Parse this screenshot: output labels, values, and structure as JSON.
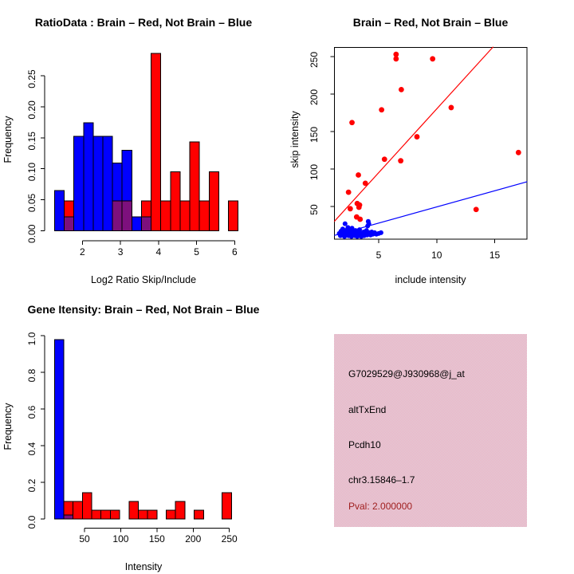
{
  "window": {
    "background": "#ffffff"
  },
  "colors": {
    "red": "#ff0000",
    "blue": "#0000ff",
    "overlap": "#7d107d",
    "axis": "#000000",
    "pval_text": "#a02020",
    "info_bg_pink": "#f2abc2",
    "info_bg_gray": "#dcd4da"
  },
  "legend_meaning": {
    "red": "Brain",
    "blue": "Not Brain"
  },
  "chart_data": [
    {
      "id": "ratio_histogram",
      "type": "bar",
      "title": "RatioData : Brain – Red, Not Brain – Blue",
      "xlabel": "Log2 Ratio Skip/Include",
      "ylabel": "Frequency",
      "xlim": [
        1.2,
        6.2
      ],
      "ylim": [
        0,
        0.29
      ],
      "grid": false,
      "x_ticks": [
        2,
        3,
        4,
        5,
        6
      ],
      "y_ticks": [
        {
          "v": 0.0,
          "label": "0.00"
        },
        {
          "v": 0.05,
          "label": "0.05"
        },
        {
          "v": 0.1,
          "label": "0.10"
        },
        {
          "v": 0.15,
          "label": "0.15"
        },
        {
          "v": 0.2,
          "label": "0.20"
        },
        {
          "v": 0.25,
          "label": "0.25"
        }
      ],
      "bins": [
        {
          "x0": 1.27,
          "x1": 1.524,
          "blue": 0.065,
          "red": 0
        },
        {
          "x0": 1.524,
          "x1": 1.777,
          "blue": 0.022,
          "red": 0.048
        },
        {
          "x0": 1.777,
          "x1": 2.031,
          "blue": 0.152,
          "red": 0
        },
        {
          "x0": 2.031,
          "x1": 2.285,
          "blue": 0.174,
          "red": 0
        },
        {
          "x0": 2.285,
          "x1": 2.538,
          "blue": 0.152,
          "red": 0
        },
        {
          "x0": 2.538,
          "x1": 2.792,
          "blue": 0.152,
          "red": 0
        },
        {
          "x0": 2.792,
          "x1": 3.046,
          "blue": 0.109,
          "red": 0.048
        },
        {
          "x0": 3.046,
          "x1": 3.299,
          "blue": 0.13,
          "red": 0.048
        },
        {
          "x0": 3.299,
          "x1": 3.553,
          "blue": 0.022,
          "red": 0
        },
        {
          "x0": 3.553,
          "x1": 3.807,
          "blue": 0.022,
          "red": 0.048
        },
        {
          "x0": 3.807,
          "x1": 4.06,
          "blue": 0,
          "red": 0.286
        },
        {
          "x0": 4.06,
          "x1": 4.314,
          "blue": 0,
          "red": 0.048
        },
        {
          "x0": 4.314,
          "x1": 4.568,
          "blue": 0,
          "red": 0.095
        },
        {
          "x0": 4.568,
          "x1": 4.821,
          "blue": 0,
          "red": 0.048
        },
        {
          "x0": 4.821,
          "x1": 5.075,
          "blue": 0,
          "red": 0.143
        },
        {
          "x0": 5.075,
          "x1": 5.329,
          "blue": 0,
          "red": 0.048
        },
        {
          "x0": 5.329,
          "x1": 5.582,
          "blue": 0,
          "red": 0.095
        },
        {
          "x0": 5.836,
          "x1": 6.09,
          "blue": 0,
          "red": 0.048
        }
      ]
    },
    {
      "id": "intensity_scatter",
      "type": "scatter",
      "title": "Brain – Red, Not Brain – Blue",
      "xlabel": "include intensity",
      "ylabel": "skip intensity",
      "xlim": [
        1.17,
        17.8
      ],
      "ylim": [
        6,
        263
      ],
      "grid": false,
      "x_ticks": [
        5,
        10,
        15
      ],
      "y_ticks": [
        50,
        100,
        150,
        200,
        250
      ],
      "red_points": [
        [
          6.5,
          253
        ],
        [
          6.5,
          247
        ],
        [
          9.65,
          247
        ],
        [
          6.95,
          206
        ],
        [
          11.25,
          182
        ],
        [
          5.25,
          179
        ],
        [
          2.7,
          162
        ],
        [
          8.3,
          143
        ],
        [
          17.05,
          122
        ],
        [
          5.5,
          113
        ],
        [
          6.9,
          111
        ],
        [
          3.25,
          92
        ],
        [
          3.85,
          81
        ],
        [
          2.4,
          69
        ],
        [
          3.15,
          54
        ],
        [
          3.35,
          52
        ],
        [
          3.3,
          49
        ],
        [
          2.55,
          47
        ],
        [
          13.4,
          46
        ],
        [
          3.1,
          36
        ],
        [
          3.4,
          33
        ]
      ],
      "blue_points": [
        [
          1.6,
          14
        ],
        [
          1.7,
          11
        ],
        [
          1.75,
          17
        ],
        [
          1.85,
          13
        ],
        [
          1.9,
          20
        ],
        [
          2.0,
          15
        ],
        [
          2.05,
          10
        ],
        [
          2.1,
          27
        ],
        [
          2.15,
          18
        ],
        [
          2.2,
          13
        ],
        [
          2.3,
          16
        ],
        [
          2.35,
          22
        ],
        [
          2.4,
          11
        ],
        [
          2.45,
          19
        ],
        [
          2.5,
          14
        ],
        [
          2.6,
          17
        ],
        [
          2.65,
          10
        ],
        [
          2.7,
          21
        ],
        [
          2.8,
          13
        ],
        [
          2.85,
          16
        ],
        [
          2.95,
          11
        ],
        [
          3.0,
          18
        ],
        [
          3.05,
          14
        ],
        [
          3.15,
          10
        ],
        [
          3.2,
          16
        ],
        [
          3.3,
          12
        ],
        [
          3.35,
          19
        ],
        [
          3.45,
          14
        ],
        [
          3.5,
          10
        ],
        [
          3.6,
          13
        ],
        [
          3.7,
          16
        ],
        [
          3.75,
          11
        ],
        [
          3.85,
          14
        ],
        [
          3.95,
          18
        ],
        [
          4.0,
          12
        ],
        [
          4.05,
          24
        ],
        [
          4.1,
          30
        ],
        [
          4.15,
          27
        ],
        [
          4.2,
          15
        ],
        [
          4.3,
          12
        ],
        [
          4.4,
          16
        ],
        [
          4.5,
          13
        ],
        [
          4.65,
          15
        ],
        [
          4.8,
          13
        ],
        [
          5.0,
          14
        ],
        [
          5.2,
          15
        ]
      ],
      "red_line": {
        "x1": 1.17,
        "y1": 30,
        "x2": 14.87,
        "y2": 263
      },
      "blue_line": {
        "x1": 1.17,
        "y1": 11.4,
        "x2": 17.8,
        "y2": 83
      }
    },
    {
      "id": "gene_intensity_histogram",
      "type": "bar",
      "title": "Gene Itensity: Brain – Red, Not Brain – Blue",
      "xlabel": "Intensity",
      "ylabel": "Frequency",
      "xlim": [
        8,
        260
      ],
      "ylim": [
        0,
        1.0
      ],
      "grid": false,
      "x_ticks": [
        50,
        100,
        150,
        200,
        250
      ],
      "y_ticks": [
        {
          "v": 0.0,
          "label": "0.0"
        },
        {
          "v": 0.2,
          "label": "0.2"
        },
        {
          "v": 0.4,
          "label": "0.4"
        },
        {
          "v": 0.6,
          "label": "0.6"
        },
        {
          "v": 0.8,
          "label": "0.8"
        },
        {
          "v": 1.0,
          "label": "1.0"
        }
      ],
      "bins": [
        {
          "x0": 8.5,
          "x1": 21.4,
          "blue": 0.978,
          "red": 0
        },
        {
          "x0": 21.4,
          "x1": 34.2,
          "blue": 0.022,
          "red": 0.095
        },
        {
          "x0": 34.2,
          "x1": 47.1,
          "blue": 0,
          "red": 0.095
        },
        {
          "x0": 47.1,
          "x1": 60.0,
          "blue": 0,
          "red": 0.143
        },
        {
          "x0": 60.0,
          "x1": 72.8,
          "blue": 0,
          "red": 0.048
        },
        {
          "x0": 72.8,
          "x1": 85.7,
          "blue": 0,
          "red": 0.048
        },
        {
          "x0": 85.7,
          "x1": 98.6,
          "blue": 0,
          "red": 0.048
        },
        {
          "x0": 111.4,
          "x1": 124.3,
          "blue": 0,
          "red": 0.095
        },
        {
          "x0": 124.3,
          "x1": 137.2,
          "blue": 0,
          "red": 0.048
        },
        {
          "x0": 137.2,
          "x1": 150.0,
          "blue": 0,
          "red": 0.048
        },
        {
          "x0": 162.9,
          "x1": 175.7,
          "blue": 0,
          "red": 0.048
        },
        {
          "x0": 175.7,
          "x1": 188.6,
          "blue": 0,
          "red": 0.095
        },
        {
          "x0": 201.5,
          "x1": 214.3,
          "blue": 0,
          "red": 0.048
        },
        {
          "x0": 240.1,
          "x1": 252.9,
          "blue": 0,
          "red": 0.143
        }
      ]
    }
  ],
  "info_box": {
    "probe_id": "G7029529@J930968@j_at",
    "event_type": "altTxEnd",
    "gene": "Pcdh10",
    "locus": "chr3.15846–1.7",
    "pval": "Pval: 2.000000"
  }
}
